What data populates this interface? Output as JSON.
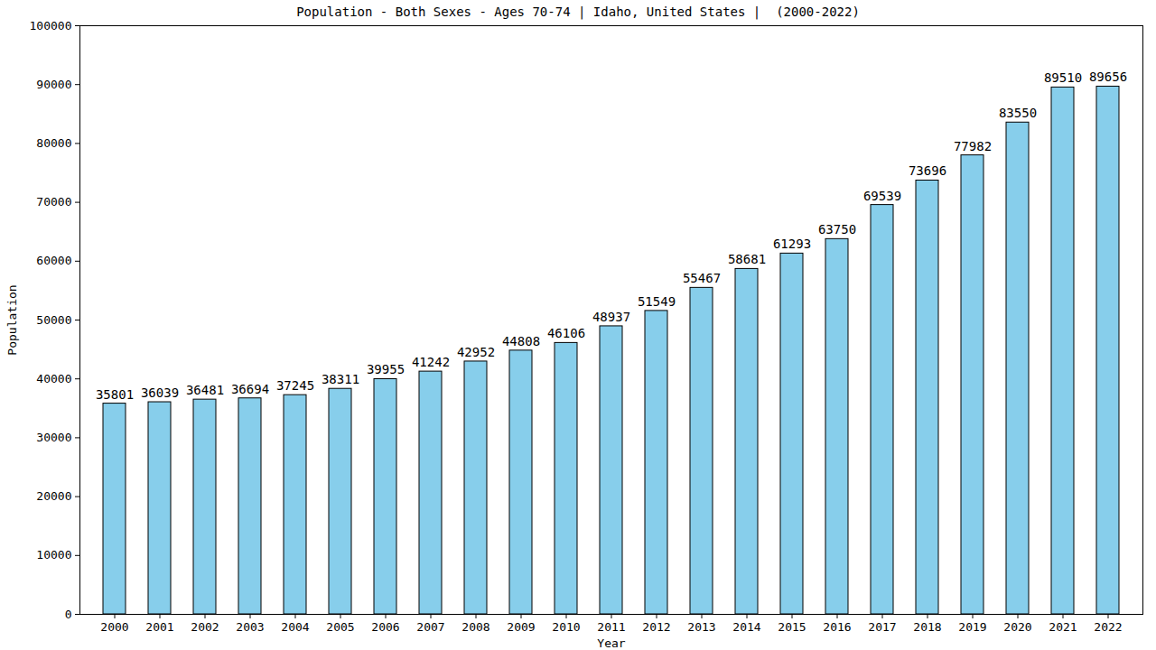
{
  "chart_data": {
    "type": "bar",
    "title": "Population - Both Sexes - Ages 70-74 | Idaho, United States |  (2000-2022)",
    "x_label": "Year",
    "y_label": "Population",
    "categories": [
      "2000",
      "2001",
      "2002",
      "2003",
      "2004",
      "2005",
      "2006",
      "2007",
      "2008",
      "2009",
      "2010",
      "2011",
      "2012",
      "2013",
      "2014",
      "2015",
      "2016",
      "2017",
      "2018",
      "2019",
      "2020",
      "2021",
      "2022"
    ],
    "values": [
      35801,
      36039,
      36481,
      36694,
      37245,
      38311,
      39955,
      41242,
      42952,
      44808,
      46106,
      48937,
      51549,
      55467,
      58681,
      61293,
      63750,
      69539,
      73696,
      77982,
      83550,
      89510,
      89656
    ],
    "color": "#87ceeb",
    "ylim": [
      0,
      100000
    ],
    "yticks": [
      0,
      10000,
      20000,
      30000,
      40000,
      50000,
      60000,
      70000,
      80000,
      90000,
      100000
    ],
    "grid": false,
    "data_labels": true
  }
}
